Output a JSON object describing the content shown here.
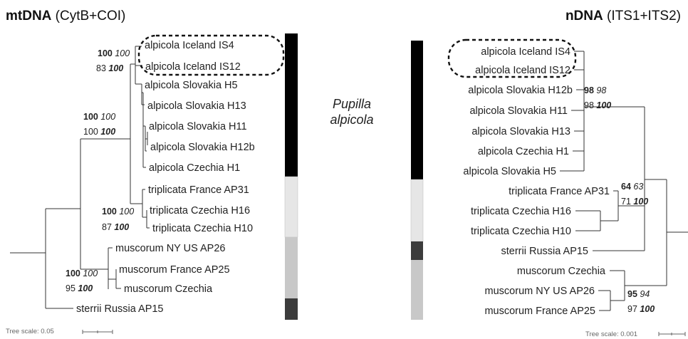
{
  "left_panel": {
    "title_bold": "mtDNA",
    "title_rest": " (CytB+COI)",
    "tree_scale": "Tree scale: 0.05",
    "taxa": [
      "alpicola Iceland IS4",
      "alpicola Iceland IS12",
      "alpicola Slovakia H5",
      "alpicola Slovakia H13",
      "alpicola Slovakia H11",
      "alpicola Slovakia H12b",
      "alpicola Czechia H1",
      "triplicata France AP31",
      "triplicata Czechia H16",
      "triplicata Czechia H10",
      "muscorum NY US AP26",
      "muscorum France AP25",
      "muscorum Czechia",
      "sterrii Russia AP15"
    ],
    "support": [
      {
        "a": "100",
        "b": "100",
        "c": "83",
        "d": "100"
      },
      {
        "a": "100",
        "b": "100",
        "c": "100",
        "d": "100"
      },
      {
        "a": "100",
        "b": "100",
        "c": "87",
        "d": "100"
      },
      {
        "a": "100",
        "b": "100",
        "c": "95",
        "d": "100"
      }
    ]
  },
  "right_panel": {
    "title_bold": "nDNA",
    "title_rest": " (ITS1+ITS2)",
    "tree_scale": "Tree scale: 0.001",
    "taxa": [
      "alpicola Iceland IS4",
      "alpicola Iceland IS12",
      "alpicola Slovakia H12b",
      "alpicola Slovakia H11",
      "alpicola Slovakia H13",
      "alpicola Czechia H1",
      "alpicola Slovakia H5",
      "triplicata France AP31",
      "triplicata Czechia H16",
      "triplicata Czechia H10",
      "sterrii Russia AP15",
      "muscorum Czechia",
      "muscorum NY US AP26",
      "muscorum France AP25"
    ],
    "support": [
      {
        "a": "98",
        "b": "98",
        "c": "98",
        "d": "100"
      },
      {
        "a": "64",
        "b": "63",
        "c": "71",
        "d": "100"
      },
      {
        "a": "95",
        "b": "94",
        "c": "97",
        "d": "100"
      }
    ]
  },
  "center_label": {
    "line1": "Pupilla",
    "line2": "alpicola"
  },
  "colors": {
    "alpicola": "#000000",
    "triplicata": "#e6e6e6",
    "muscorum": "#c8c8c8",
    "sterrii": "#3c3c3c",
    "branch": "#333333"
  }
}
